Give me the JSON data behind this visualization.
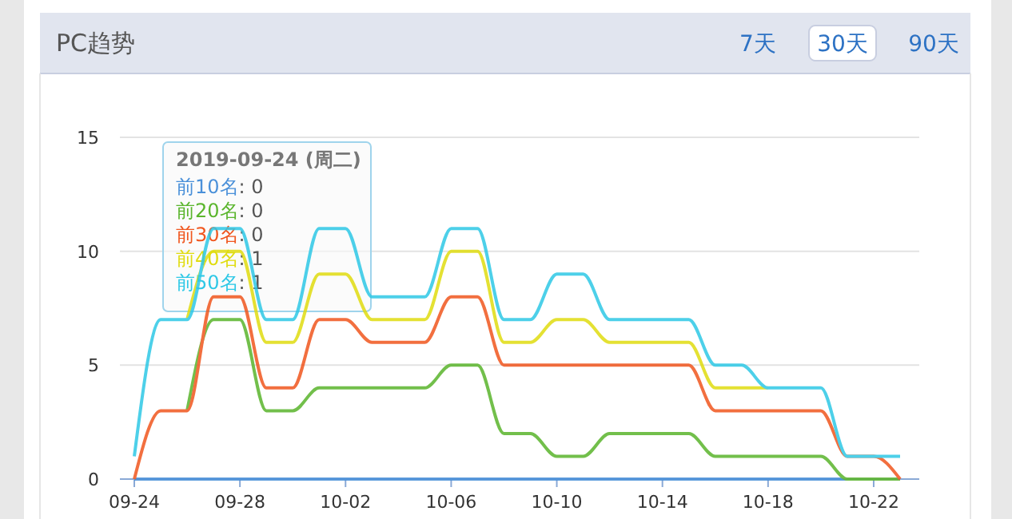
{
  "chart_data": {
    "type": "line",
    "title": "PC趋势",
    "categories": [
      "09-24",
      null,
      null,
      null,
      "09-28",
      null,
      null,
      null,
      "10-02",
      null,
      null,
      null,
      "10-06",
      null,
      null,
      null,
      "10-10",
      null,
      null,
      null,
      "10-14",
      null,
      null,
      null,
      "10-18",
      null,
      null,
      null,
      "10-22",
      null
    ],
    "series": [
      {
        "color": "#4a90d9",
        "values": [
          0,
          0,
          0,
          0,
          0,
          0,
          0,
          0,
          0,
          0,
          0,
          0,
          0,
          0,
          0,
          0,
          0,
          0,
          0,
          0,
          0,
          0,
          0,
          0,
          0,
          0,
          0,
          0,
          0,
          0
        ]
      },
      {
        "color": "#5ab52c",
        "values": [
          null,
          null,
          3,
          7,
          7,
          3,
          3,
          4,
          4,
          4,
          4,
          4,
          5,
          5,
          2,
          2,
          1,
          1,
          2,
          2,
          2,
          2,
          1,
          1,
          1,
          1,
          1,
          0,
          0,
          0
        ]
      },
      {
        "color": "#f0561e",
        "values": [
          0,
          3,
          3,
          8,
          8,
          4,
          4,
          7,
          7,
          6,
          6,
          6,
          8,
          8,
          5,
          5,
          5,
          5,
          5,
          5,
          5,
          5,
          3,
          3,
          3,
          3,
          3,
          1,
          1,
          0
        ]
      },
      {
        "color": "#e0dc10",
        "values": [
          null,
          null,
          7,
          10,
          10,
          6,
          6,
          9,
          9,
          7,
          7,
          7,
          10,
          10,
          6,
          6,
          7,
          7,
          6,
          6,
          6,
          6,
          4,
          4,
          4,
          null,
          null,
          null,
          null,
          null
        ]
      },
      {
        "color": "#2ec8e6",
        "values": [
          1,
          7,
          7,
          11,
          11,
          7,
          7,
          11,
          11,
          8,
          8,
          8,
          11,
          11,
          7,
          7,
          9,
          9,
          7,
          7,
          7,
          7,
          5,
          5,
          4,
          4,
          4,
          1,
          1,
          1
        ]
      }
    ],
    "ylim": [
      0,
      15
    ],
    "yticks": [
      0,
      5,
      10,
      15
    ],
    "grid": "y",
    "marker": "none",
    "line_style": "solid",
    "annotations": [
      "2019-09-24 (周二)",
      "前10名: 0",
      "前20名: 0",
      "前30名: 0",
      "前40名: 1",
      "前50名: 1",
      "7天",
      "30天",
      "90天"
    ]
  }
}
